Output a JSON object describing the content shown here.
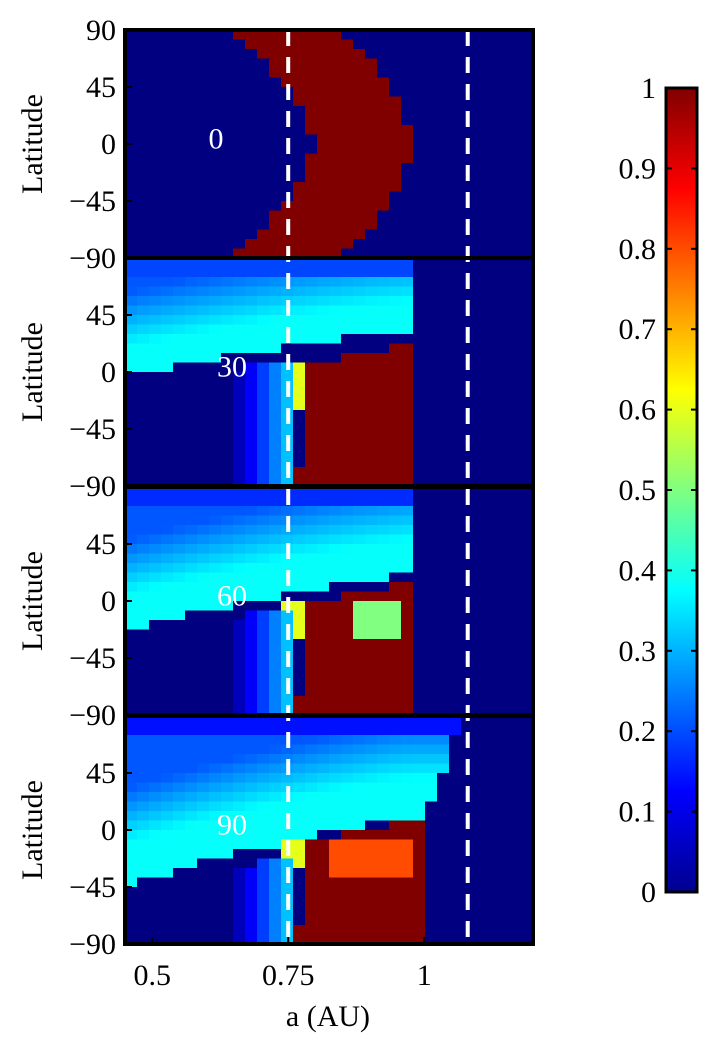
{
  "chart_data": {
    "type": "heatmap",
    "xlabel": "a (AU)",
    "x_ticks": [
      "0.5",
      "0.75",
      "1"
    ],
    "x_tick_values": [
      0.5,
      0.75,
      1.0
    ],
    "xlim": [
      0.45,
      1.2
    ],
    "ylim": [
      -90,
      90
    ],
    "y_ticks": [
      "90",
      "45",
      "0",
      "−45",
      "−90"
    ],
    "y_tick_values": [
      90,
      45,
      0,
      -45,
      -90
    ],
    "dashed_lines_x": [
      0.75,
      1.08
    ],
    "colormap": "jet",
    "colorbar": {
      "range": [
        0,
        1
      ],
      "ticks": [
        "1",
        "0.9",
        "0.8",
        "0.7",
        "0.6",
        "0.5",
        "0.4",
        "0.3",
        "0.2",
        "0.1",
        "0"
      ],
      "tick_values": [
        1,
        0.9,
        0.8,
        0.7,
        0.6,
        0.5,
        0.4,
        0.3,
        0.2,
        0.1,
        0
      ]
    },
    "panels": [
      {
        "label": "0",
        "ylabel": "Latitude"
      },
      {
        "label": "30",
        "ylabel": "Latitude"
      },
      {
        "label": "60",
        "ylabel": "Latitude"
      },
      {
        "label": "90",
        "ylabel": "Latitude"
      }
    ],
    "colors": {
      "low": "#00008f",
      "high": "#800000",
      "dash": "#ffffff"
    }
  }
}
